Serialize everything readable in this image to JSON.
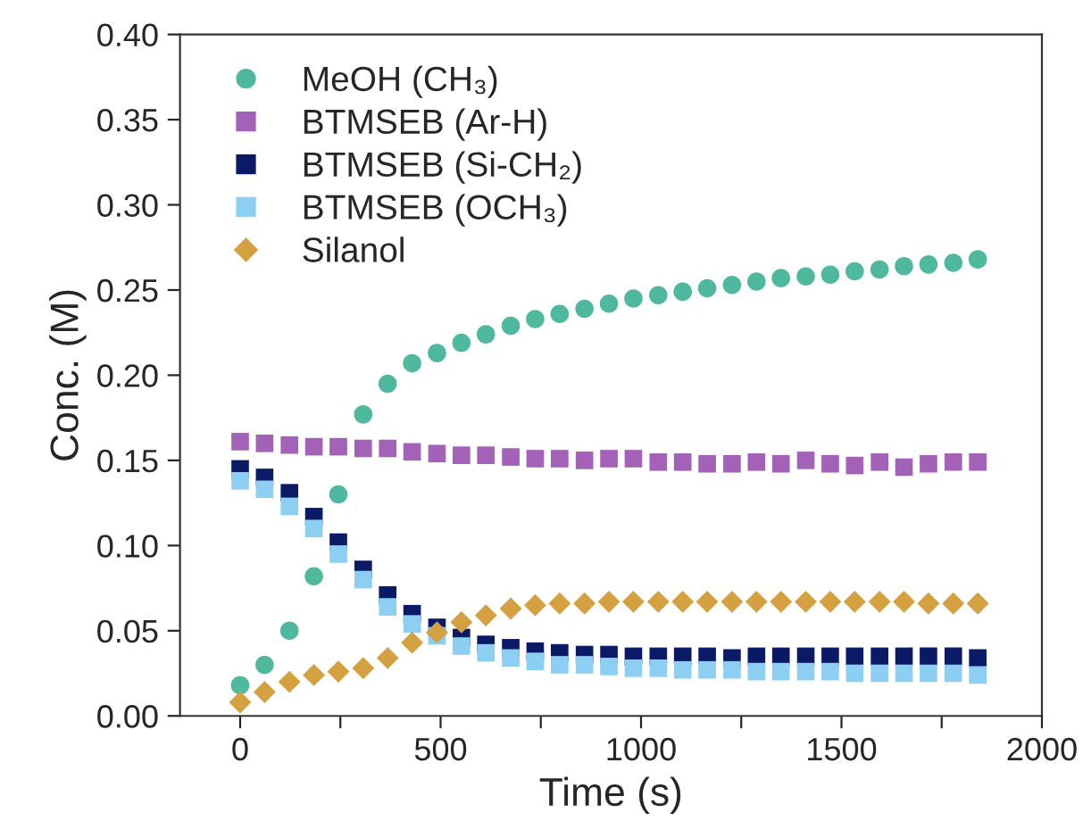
{
  "chart_data": {
    "type": "scatter",
    "xlabel": "Time (s)",
    "ylabel": "Conc. (M)",
    "x": [
      0,
      61,
      123,
      184,
      245,
      307,
      368,
      429,
      491,
      552,
      613,
      675,
      736,
      797,
      859,
      920,
      981,
      1043,
      1104,
      1165,
      1227,
      1288,
      1349,
      1411,
      1472,
      1533,
      1595,
      1656,
      1717,
      1779,
      1840
    ],
    "series": [
      {
        "name": "MeOH (CH₃)",
        "color": "#4fb9a0",
        "marker": "circle",
        "values": [
          0.018,
          0.03,
          0.05,
          0.082,
          0.13,
          0.177,
          0.195,
          0.207,
          0.213,
          0.219,
          0.224,
          0.229,
          0.233,
          0.236,
          0.239,
          0.242,
          0.245,
          0.247,
          0.249,
          0.251,
          0.253,
          0.255,
          0.257,
          0.258,
          0.259,
          0.261,
          0.262,
          0.264,
          0.265,
          0.266,
          0.268
        ]
      },
      {
        "name": "BTMSEB (Ar-H)",
        "color": "#a361b8",
        "marker": "square",
        "values": [
          0.161,
          0.16,
          0.159,
          0.158,
          0.158,
          0.157,
          0.157,
          0.155,
          0.154,
          0.153,
          0.153,
          0.152,
          0.151,
          0.151,
          0.15,
          0.151,
          0.151,
          0.149,
          0.149,
          0.148,
          0.148,
          0.149,
          0.148,
          0.15,
          0.148,
          0.147,
          0.149,
          0.146,
          0.148,
          0.149,
          0.149
        ]
      },
      {
        "name": "BTMSEB (Si-CH₂)",
        "color": "#0a1a66",
        "marker": "square",
        "values": [
          0.145,
          0.14,
          0.131,
          0.117,
          0.102,
          0.086,
          0.071,
          0.06,
          0.052,
          0.046,
          0.042,
          0.04,
          0.038,
          0.037,
          0.036,
          0.036,
          0.035,
          0.035,
          0.035,
          0.035,
          0.034,
          0.035,
          0.035,
          0.035,
          0.035,
          0.035,
          0.035,
          0.035,
          0.035,
          0.035,
          0.034
        ]
      },
      {
        "name": "BTMSEB (OCH₃)",
        "color": "#8ccff3",
        "marker": "square",
        "values": [
          0.138,
          0.133,
          0.123,
          0.11,
          0.095,
          0.08,
          0.064,
          0.054,
          0.047,
          0.041,
          0.037,
          0.034,
          0.032,
          0.03,
          0.03,
          0.029,
          0.028,
          0.028,
          0.027,
          0.027,
          0.027,
          0.026,
          0.026,
          0.026,
          0.026,
          0.025,
          0.025,
          0.025,
          0.025,
          0.025,
          0.024
        ]
      },
      {
        "name": "Silanol",
        "color": "#d4a040",
        "marker": "diamond",
        "values": [
          0.008,
          0.014,
          0.02,
          0.024,
          0.026,
          0.028,
          0.034,
          0.043,
          0.049,
          0.055,
          0.059,
          0.063,
          0.065,
          0.066,
          0.066,
          0.067,
          0.067,
          0.067,
          0.067,
          0.067,
          0.067,
          0.067,
          0.067,
          0.067,
          0.067,
          0.067,
          0.067,
          0.067,
          0.066,
          0.066,
          0.066
        ]
      }
    ],
    "xlim": [
      -150,
      2000
    ],
    "xticks": [
      0,
      {
        "value": 250,
        "label": null
      },
      500,
      {
        "value": 750,
        "label": null
      },
      1000,
      {
        "value": 1250,
        "label": null
      },
      1500,
      {
        "value": 1750,
        "label": null
      },
      2000
    ],
    "ylim": [
      0,
      0.4
    ],
    "yticks": [
      {
        "value": 0,
        "label": "0.00"
      },
      {
        "value": 0.05,
        "label": "0.05"
      },
      {
        "value": 0.1,
        "label": "0.10"
      },
      {
        "value": 0.15,
        "label": "0.15"
      },
      {
        "value": 0.2,
        "label": "0.20"
      },
      {
        "value": 0.25,
        "label": "0.25"
      },
      {
        "value": 0.3,
        "label": "0.30"
      },
      {
        "value": 0.35,
        "label": "0.35"
      },
      {
        "value": 0.4,
        "label": "0.40"
      }
    ],
    "legend": "top left",
    "grid": false
  }
}
